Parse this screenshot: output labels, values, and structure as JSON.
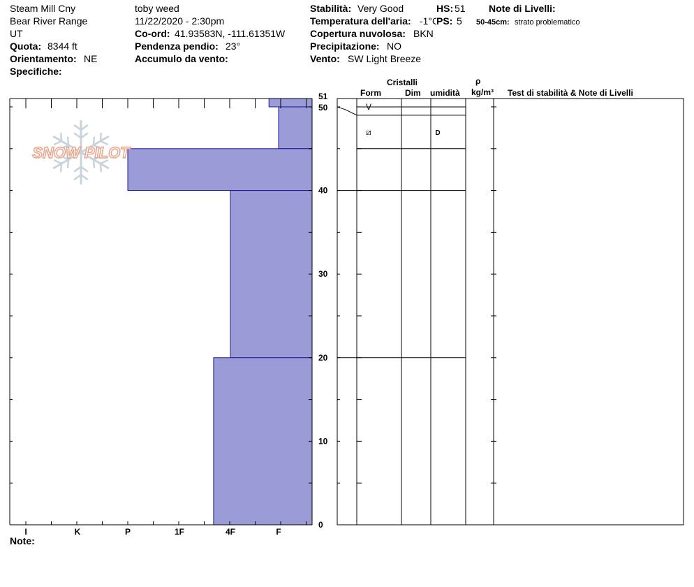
{
  "header": {
    "location": "Steam Mill Cny",
    "range": "Bear River Range",
    "state": "UT",
    "elevation_label": "Quota:",
    "elevation_value": "8344 ft",
    "aspect_label": "Orientamento:",
    "aspect_value": "NE",
    "specifics_label": "Specifiche:",
    "observer": "toby weed",
    "datetime": "11/22/2020 - 2:30pm",
    "coords_label": "Co-ord:",
    "coords_value": "41.93583N, -111.61351W",
    "slope_label": "Pendenza pendio:",
    "slope_value": "23°",
    "wind_loading_label": "Accumulo da vento:",
    "stability_label": "Stabilità:",
    "stability_value": "Very Good",
    "air_temp_label": "Temperatura dell'aria:",
    "air_temp_value": "-1°C",
    "cloud_label": "Copertura nuvolosa:",
    "cloud_value": "BKN",
    "precip_label": "Precipitazione:",
    "precip_value": "NO",
    "wind_label": "Vento:",
    "wind_value": "SW Light Breeze",
    "hs_label": "HS:",
    "hs_value": "51",
    "ps_label": "PS:",
    "ps_value": "5",
    "layer_notes_label": "Note di Livelli:",
    "layer_note_range": "50-45cm:",
    "layer_note_text": "strato problematico"
  },
  "columns": {
    "crystals": "Cristalli",
    "form": "Form",
    "size": "Dim",
    "moisture": "umidità",
    "rho": "ρ",
    "density_unit": "kg/m³",
    "stability_notes": "Test di stabilità & Note di Livelli"
  },
  "logo_text": "SNOW PILOT",
  "footer": {
    "notes_label": "Note:"
  },
  "colors": {
    "hardness_fill": "#9b9bd7",
    "hardness_stroke": "#1a1a9a",
    "logo": "#e8a58c"
  },
  "chart_data": {
    "type": "bar",
    "title": "",
    "ylabel": "",
    "ylim": [
      0,
      51
    ],
    "y_ticks": [
      0,
      10,
      20,
      30,
      40,
      50,
      51
    ],
    "hardness_scale": [
      "I",
      "K",
      "P",
      "1F",
      "4F",
      "F"
    ],
    "layers": [
      {
        "top": 51,
        "bottom": 50,
        "hardness_level": 1.2
      },
      {
        "top": 50,
        "bottom": 45,
        "hardness_level": 0.8
      },
      {
        "top": 45,
        "bottom": 40,
        "hardness_level": 4.0
      },
      {
        "top": 40,
        "bottom": 20,
        "hardness_level": 2.0
      },
      {
        "top": 20,
        "bottom": 0,
        "hardness_level": 2.33
      }
    ],
    "layer_lines": [
      51,
      50,
      49,
      45,
      40,
      20
    ],
    "crystal_rows": [
      {
        "depth": 50,
        "form_symbol": "V",
        "moisture": ""
      },
      {
        "depth": 47,
        "form_symbol": "⧄",
        "moisture": "D"
      }
    ]
  }
}
